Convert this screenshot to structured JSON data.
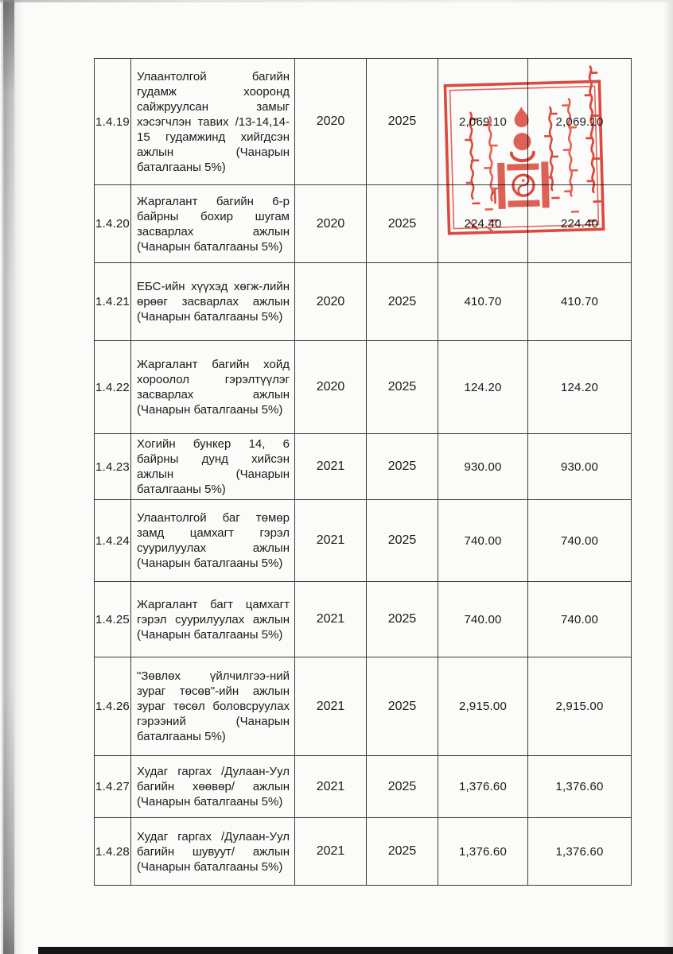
{
  "colors": {
    "stamp_red": "#dd3b2f",
    "ink": "#1b1b1b",
    "scan_bar": "#161616"
  },
  "stamp": {
    "name": "official-red-seal-with-soyombo",
    "description": "square double-border red ink seal, vertical Mongolian script, state Soyombo emblem in center"
  },
  "table": {
    "rows": [
      {
        "no": "1.4.19",
        "description": "Улаантолгой багийн гудамж хооронд сайжруулсан замыг хэсэгчлэн тавих /13-14,14-15 гудамжинд хийгдсэн ажлын (Чанарын баталгааны 5%)",
        "start_year": "2020",
        "end_year": "2025",
        "amount1": "2,069.10",
        "amount2": "2,069.10"
      },
      {
        "no": "1.4.20",
        "description": "Жаргалант багийн 6-р байрны бохир шугам засварлах ажлын (Чанарын баталгааны 5%)",
        "start_year": "2020",
        "end_year": "2025",
        "amount1": "224.40",
        "amount2": "224.40"
      },
      {
        "no": "1.4.21",
        "description": "ЕБС-ийн хүүхэд хөгж-лийн өрөөг засварлах ажлын (Чанарын баталгааны 5%)",
        "start_year": "2020",
        "end_year": "2025",
        "amount1": "410.70",
        "amount2": "410.70"
      },
      {
        "no": "1.4.22",
        "description": "Жаргалант багийн хойд хороолол гэрэлтүүлэг засварлах ажлын (Чанарын баталгааны 5%)",
        "start_year": "2020",
        "end_year": "2025",
        "amount1": "124.20",
        "amount2": "124.20"
      },
      {
        "no": "1.4.23",
        "description": "Хогийн бункер 14, 6 байрны дунд хийсэн ажлын (Чанарын баталгааны 5%)",
        "start_year": "2021",
        "end_year": "2025",
        "amount1": "930.00",
        "amount2": "930.00"
      },
      {
        "no": "1.4.24",
        "description": "Улаантолгой баг төмөр замд цамхагт гэрэл суурилуулах ажлын (Чанарын баталгааны 5%)",
        "start_year": "2021",
        "end_year": "2025",
        "amount1": "740.00",
        "amount2": "740.00"
      },
      {
        "no": "1.4.25",
        "description": "Жаргалант багт цамхагт гэрэл суурилуулах ажлын (Чанарын баталгааны 5%)",
        "start_year": "2021",
        "end_year": "2025",
        "amount1": "740.00",
        "amount2": "740.00"
      },
      {
        "no": "1.4.26",
        "description": "\"Зөвлөх үйлчилгээ-ний зураг төсөв\"-ийн ажлын зураг төсөл боловсруулах гэрээний (Чанарын баталгааны 5%)",
        "start_year": "2021",
        "end_year": "2025",
        "amount1": "2,915.00",
        "amount2": "2,915.00"
      },
      {
        "no": "1.4.27",
        "description": "Худаг гаргах /Дулаан-Уул багийн хөөвөр/ ажлын (Чанарын баталгааны 5%)",
        "start_year": "2021",
        "end_year": "2025",
        "amount1": "1,376.60",
        "amount2": "1,376.60"
      },
      {
        "no": "1.4.28",
        "description": "Худаг гаргах /Дулаан-Уул багийн шувуут/ ажлын (Чанарын баталгааны 5%)",
        "start_year": "2021",
        "end_year": "2025",
        "amount1": "1,376.60",
        "amount2": "1,376.60"
      }
    ]
  }
}
